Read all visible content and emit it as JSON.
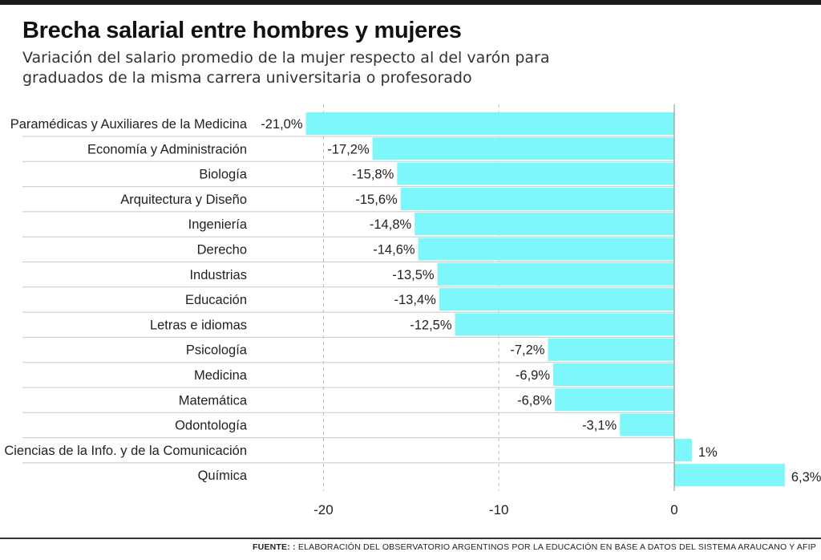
{
  "header": {
    "title": "Brecha salarial entre hombres y mujeres",
    "subtitle": "Variación del salario promedio de la mujer respecto al del varón para graduados de la misma carrera universitaria o profesorado"
  },
  "footer": {
    "source_label": "FUENTE: :",
    "source_text": "ELABORACIÓN DEL OBSERVATORIO ARGENTINOS POR LA EDUCACIÓN EN BASE A DATOS DEL SISTEMA ARAUCANO Y AFIP"
  },
  "colors": {
    "bar": "#7ef7fb",
    "grid": "#bdbdbd",
    "axis": "#888888",
    "separator": "#c8c8c8",
    "topbar": "#1b1b1b"
  },
  "chart_data": {
    "type": "bar",
    "orientation": "horizontal",
    "categories": [
      "Paramédicas y Auxiliares de la Medicina",
      "Economía y Administración",
      "Biología",
      "Arquitectura y Diseño",
      "Ingeniería",
      "Derecho",
      "Industrias",
      "Educación",
      "Letras e idiomas",
      "Psicología",
      "Medicina",
      "Matemática",
      "Odontología",
      "Ciencias de la Info. y de la Comunicación",
      "Química"
    ],
    "values": [
      -21.0,
      -17.2,
      -15.8,
      -15.6,
      -14.8,
      -14.6,
      -13.5,
      -13.4,
      -12.5,
      -7.2,
      -6.9,
      -6.8,
      -3.1,
      1,
      6.3
    ],
    "value_labels": [
      "-21,0%",
      "-17,2%",
      "-15,8%",
      "-15,6%",
      "-14,8%",
      "-14,6%",
      "-13,5%",
      "-13,4%",
      "-12,5%",
      "-7,2%",
      "-6,9%",
      "-6,8%",
      "-3,1%",
      "1%",
      "6,3%"
    ],
    "x_ticks": [
      -20,
      -10,
      0
    ],
    "x_tick_labels": [
      "-20",
      "-10",
      "0"
    ],
    "xlim": [
      -23.3,
      6.8
    ],
    "grid": "vertical dashed",
    "legend": "none"
  }
}
